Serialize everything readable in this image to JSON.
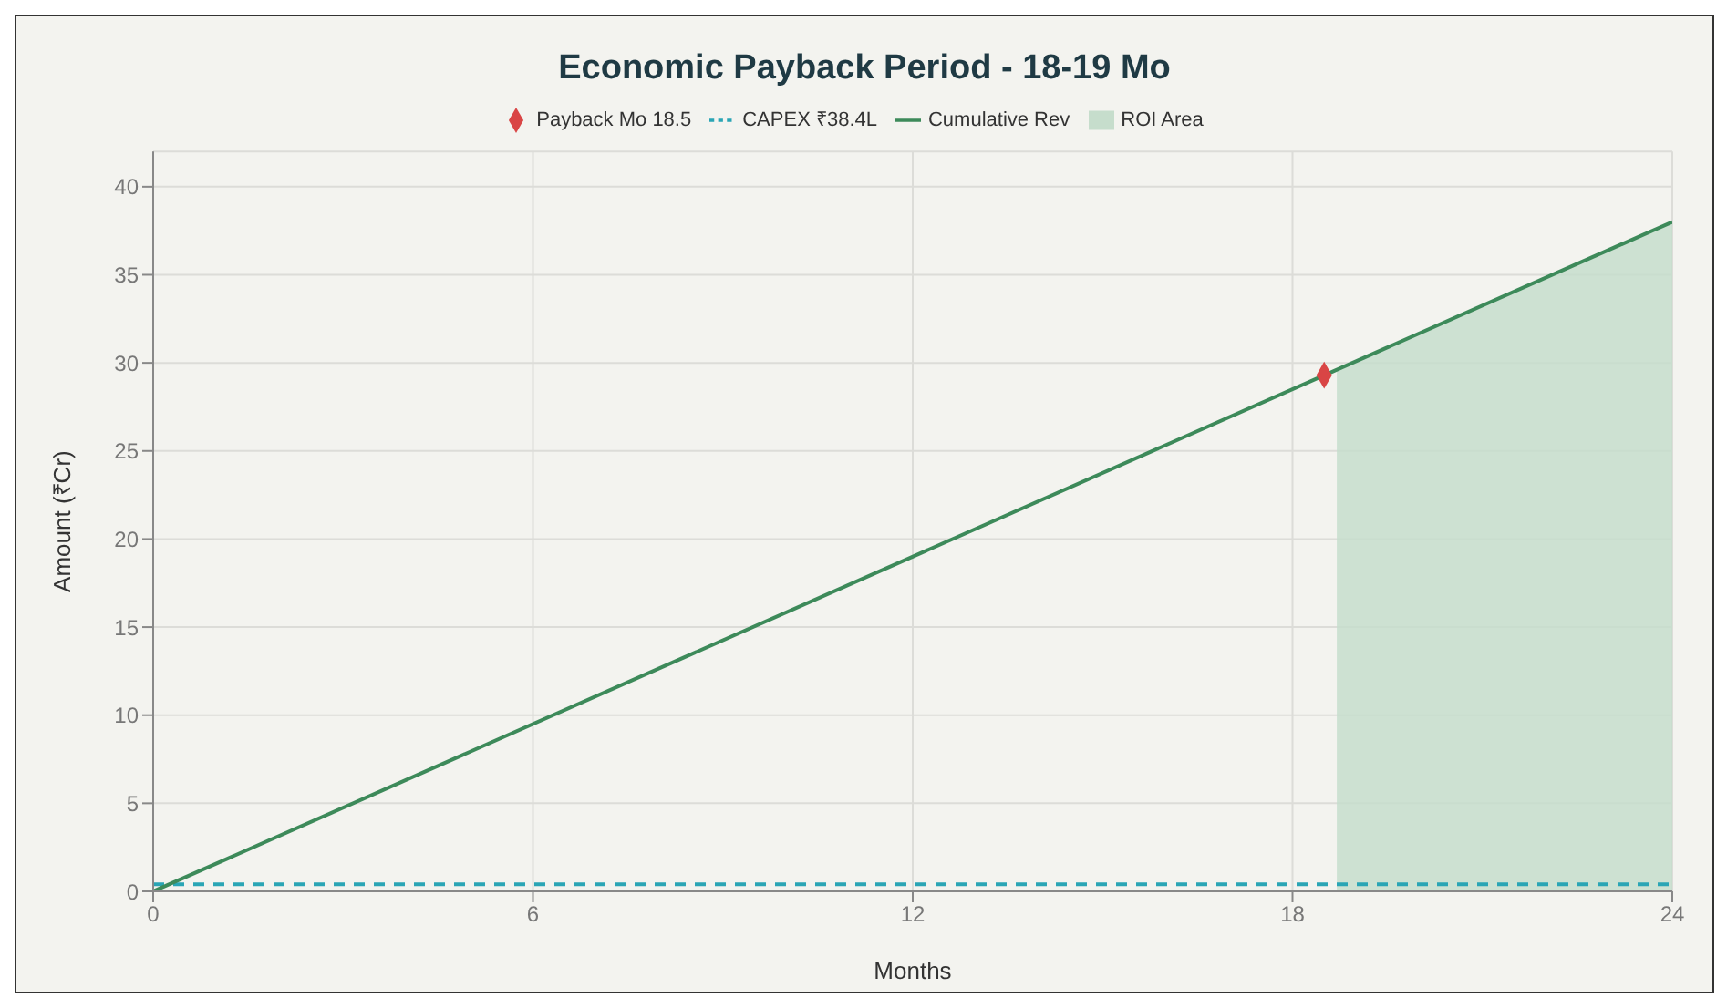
{
  "chart_data": {
    "type": "line",
    "title": "Economic Payback Period - 18-19 Mo",
    "xlabel": "Months",
    "ylabel": "Amount (₹Cr)",
    "xlim": [
      0,
      24
    ],
    "xticks": [
      0,
      6,
      12,
      18,
      24
    ],
    "ylim": [
      0,
      42
    ],
    "yticks": [
      0,
      5,
      10,
      15,
      20,
      25,
      30,
      35,
      40
    ],
    "grid": true,
    "legend": "top",
    "series": [
      {
        "name": "Payback Mo 18.5",
        "type": "scatter",
        "marker": "diamond",
        "color": "#d94545",
        "x": [
          18.5
        ],
        "values": [
          29.3
        ]
      },
      {
        "name": "CAPEX ₹38.4L",
        "line_style": "dashed",
        "color": "#2aa5b5",
        "x": [
          0,
          24
        ],
        "values": [
          0.4,
          0.4
        ]
      },
      {
        "name": "Cumulative Rev",
        "line_style": "solid",
        "color": "#3d8a5a",
        "x": [
          0,
          24
        ],
        "values": [
          0,
          38
        ]
      },
      {
        "name": "ROI Area",
        "type": "area",
        "color": "#c6ddcc",
        "x": [
          18.7,
          24
        ],
        "values": [
          29.6,
          38
        ]
      }
    ]
  }
}
